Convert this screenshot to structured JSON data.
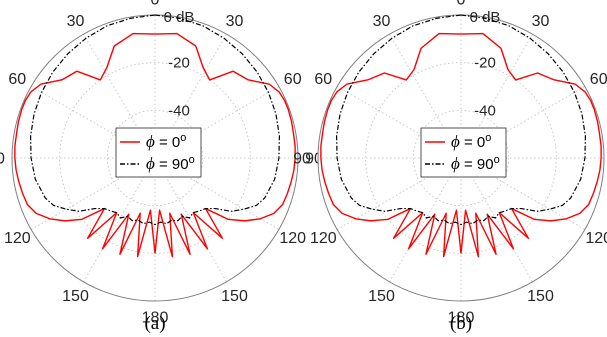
{
  "chart_data": [
    {
      "type": "line",
      "polar": true,
      "panel_label": "(a)",
      "theta_ticks": [
        "0",
        "30",
        "60",
        "90",
        "120",
        "150",
        "180",
        "150",
        "120",
        "90",
        "60",
        "30"
      ],
      "r_ticks": [
        "0 dB",
        "-20",
        "-40"
      ],
      "rlim": [
        -60,
        0
      ],
      "grid": true,
      "legend": {
        "placement": "center",
        "entries": [
          "ϕ = 0°",
          "ϕ = 90°"
        ]
      },
      "series": [
        {
          "name": "ϕ = 0°",
          "color": "#ff0000",
          "style": "solid",
          "theta": [
            0,
            10,
            20,
            28,
            35,
            42,
            50,
            57,
            62,
            66,
            70,
            75,
            80,
            85,
            90,
            95,
            100,
            105,
            110,
            115,
            120,
            125,
            130,
            135,
            140,
            145,
            150,
            155,
            160,
            165,
            170,
            175,
            180
          ],
          "values": [
            -8,
            -7,
            -10,
            -17,
            -20,
            -11,
            -9,
            -3,
            -1,
            -0.5,
            -0.5,
            -0.7,
            -1,
            -1,
            -1.2,
            -1.5,
            -2,
            -2.5,
            -3,
            -5,
            -9,
            -14,
            -20,
            -30,
            -16,
            -32,
            -16,
            -34,
            -17,
            -36,
            -18,
            -38,
            -20
          ]
        },
        {
          "name": "ϕ = 90°",
          "color": "#000000",
          "style": "dashdot",
          "theta": [
            0,
            10,
            20,
            30,
            40,
            50,
            60,
            70,
            80,
            90,
            100,
            110,
            115,
            120,
            125,
            130,
            135,
            140,
            145,
            150,
            155,
            160,
            165,
            170,
            175,
            180
          ],
          "values": [
            0,
            -0.5,
            -1,
            -2,
            -3,
            -4,
            -5,
            -6,
            -7,
            -8,
            -9,
            -11,
            -13,
            -17,
            -21,
            -27,
            -30,
            -31,
            -32,
            -31,
            -33,
            -32,
            -33,
            -32,
            -33,
            -32
          ]
        }
      ]
    },
    {
      "type": "line",
      "polar": true,
      "panel_label": "(b)",
      "theta_ticks": [
        "0",
        "30",
        "60",
        "90",
        "120",
        "150",
        "180",
        "150",
        "120",
        "90",
        "60",
        "30"
      ],
      "r_ticks": [
        "0 dB",
        "-20",
        "-40"
      ],
      "rlim": [
        -60,
        0
      ],
      "grid": true,
      "legend": {
        "placement": "center",
        "entries": [
          "ϕ = 0°",
          "ϕ = 90°"
        ]
      },
      "series": [
        {
          "name": "ϕ = 0°",
          "color": "#ff0000",
          "style": "solid",
          "theta": [
            0,
            10,
            20,
            28,
            35,
            42,
            50,
            57,
            62,
            66,
            70,
            75,
            80,
            85,
            90,
            95,
            100,
            105,
            110,
            115,
            120,
            125,
            130,
            135,
            140,
            145,
            150,
            155,
            160,
            165,
            170,
            175,
            180
          ],
          "values": [
            -8,
            -7,
            -11,
            -18,
            -20,
            -12,
            -9,
            -3,
            -1,
            -0.5,
            -0.5,
            -0.7,
            -1,
            -1,
            -1.2,
            -1.5,
            -2,
            -2.5,
            -3,
            -5,
            -9,
            -14,
            -20,
            -30,
            -16,
            -32,
            -16,
            -34,
            -17,
            -36,
            -18,
            -38,
            -20
          ]
        },
        {
          "name": "ϕ = 90°",
          "color": "#000000",
          "style": "dashdot",
          "theta": [
            0,
            10,
            20,
            30,
            40,
            50,
            60,
            70,
            80,
            90,
            100,
            110,
            115,
            120,
            125,
            130,
            135,
            140,
            145,
            150,
            155,
            160,
            165,
            170,
            175,
            180
          ],
          "values": [
            0,
            -0.5,
            -1,
            -2,
            -3,
            -4,
            -5,
            -6,
            -7,
            -8,
            -9,
            -11,
            -13,
            -17,
            -21,
            -27,
            -30,
            -31,
            -32,
            -31,
            -33,
            -32,
            -33,
            -32,
            -33,
            -32
          ]
        }
      ]
    }
  ]
}
